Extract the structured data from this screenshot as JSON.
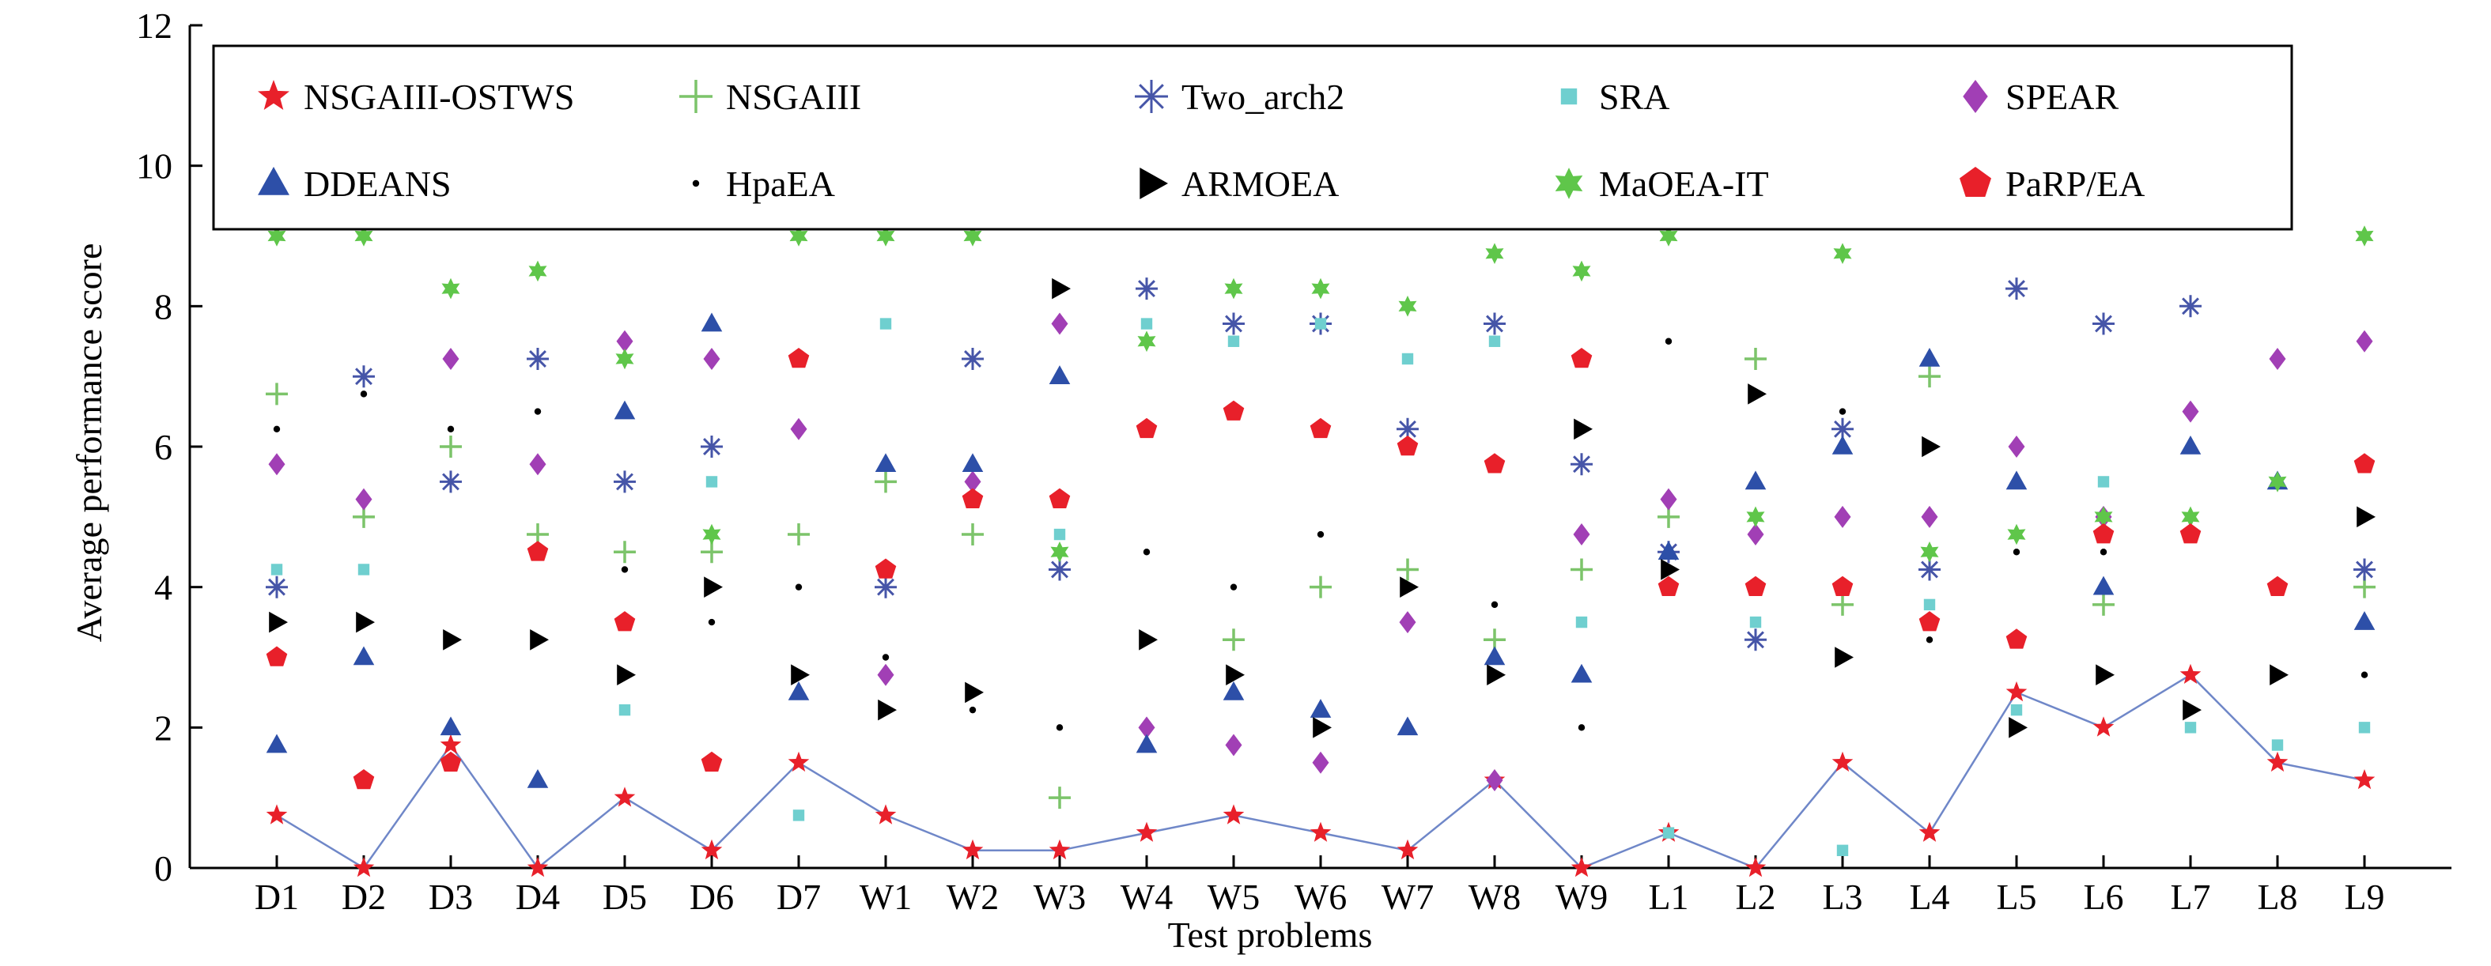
{
  "chart_data": {
    "type": "scatter",
    "title": "",
    "xlabel": "Test problems",
    "ylabel": "Average performance score",
    "ylim": [
      0,
      12
    ],
    "yticks": [
      0,
      2,
      4,
      6,
      8,
      10,
      12
    ],
    "grid": false,
    "legend_position": "top",
    "categories": [
      "D1",
      "D2",
      "D3",
      "D4",
      "D5",
      "D6",
      "D7",
      "W1",
      "W2",
      "W3",
      "W4",
      "W5",
      "W6",
      "W7",
      "W8",
      "W9",
      "L1",
      "L2",
      "L3",
      "L4",
      "L5",
      "L6",
      "L7",
      "L8",
      "L9"
    ],
    "series": [
      {
        "name": "NSGAIII-OSTWS",
        "marker": "star",
        "color": "#e8202a",
        "connected": true,
        "line_color": "#6f87c8",
        "values": [
          0.75,
          0,
          1.75,
          0,
          1,
          0.25,
          1.5,
          0.75,
          0.25,
          0.25,
          0.5,
          0.75,
          0.5,
          0.25,
          1.25,
          0,
          0.5,
          0,
          1.5,
          0.5,
          2.5,
          2,
          2.75,
          1.5,
          1.25
        ]
      },
      {
        "name": "NSGAIII",
        "marker": "plus",
        "color": "#7cc46a",
        "values": [
          6.75,
          5,
          6,
          4.75,
          4.5,
          4.5,
          4.75,
          5.5,
          4.75,
          1,
          null,
          3.25,
          4,
          4.25,
          3.25,
          4.25,
          5,
          7.25,
          3.75,
          7,
          null,
          3.75,
          null,
          null,
          4
        ]
      },
      {
        "name": "Two_arch2",
        "marker": "asterisk",
        "color": "#4655a8",
        "values": [
          4,
          7,
          5.5,
          7.25,
          5.5,
          6,
          null,
          4,
          7.25,
          4.25,
          8.25,
          7.75,
          7.75,
          6.25,
          7.75,
          5.75,
          4.5,
          3.25,
          6.25,
          4.25,
          8.25,
          7.75,
          8,
          null,
          4.25
        ]
      },
      {
        "name": "SRA",
        "marker": "square",
        "color": "#6fcfcf",
        "values": [
          4.25,
          4.25,
          null,
          null,
          2.25,
          5.5,
          0.75,
          7.75,
          null,
          4.75,
          7.75,
          7.5,
          7.75,
          7.25,
          7.5,
          3.5,
          0.5,
          3.5,
          0.25,
          3.75,
          2.25,
          5.5,
          2,
          1.75,
          2
        ]
      },
      {
        "name": "SPEAR",
        "marker": "diamond",
        "color": "#a13fb5",
        "values": [
          5.75,
          5.25,
          7.25,
          5.75,
          7.5,
          7.25,
          6.25,
          2.75,
          5.5,
          7.75,
          2,
          1.75,
          1.5,
          3.5,
          1.25,
          4.75,
          5.25,
          4.75,
          5,
          5,
          6,
          5,
          6.5,
          7.25,
          7.5
        ]
      },
      {
        "name": "DDEANS",
        "marker": "triangle-up",
        "color": "#2d4fa8",
        "values": [
          1.75,
          3,
          2,
          1.25,
          6.5,
          7.75,
          2.5,
          5.75,
          5.75,
          7,
          1.75,
          2.5,
          2.25,
          2,
          3,
          2.75,
          4.5,
          5.5,
          6,
          7.25,
          5.5,
          4,
          6,
          5.5,
          3.5
        ]
      },
      {
        "name": "HpaEA",
        "marker": "dot",
        "color": "#000000",
        "values": [
          6.25,
          6.75,
          6.25,
          6.5,
          4.25,
          3.5,
          4,
          3,
          2.25,
          2,
          4.5,
          4,
          4.75,
          null,
          3.75,
          2,
          7.5,
          null,
          6.5,
          3.25,
          4.5,
          4.5,
          null,
          null,
          2.75
        ]
      },
      {
        "name": "ARMOEA",
        "marker": "triangle-right",
        "color": "#000000",
        "values": [
          3.5,
          3.5,
          3.25,
          3.25,
          2.75,
          4,
          2.75,
          2.25,
          2.5,
          8.25,
          3.25,
          2.75,
          2,
          4,
          2.75,
          6.25,
          4.25,
          6.75,
          3,
          6,
          2,
          2.75,
          2.25,
          2.75,
          5
        ]
      },
      {
        "name": "MaOEA-IT",
        "marker": "star6",
        "color": "#5fc64a",
        "values": [
          9,
          9,
          8.25,
          8.5,
          7.25,
          4.75,
          9,
          9,
          9,
          4.5,
          7.5,
          8.25,
          8.25,
          8,
          8.75,
          8.5,
          9,
          5,
          8.75,
          4.5,
          4.75,
          5,
          5,
          5.5,
          9
        ]
      },
      {
        "name": "PaRP/EA",
        "marker": "pentagon",
        "color": "#e8202a",
        "values": [
          3,
          1.25,
          1.5,
          4.5,
          3.5,
          1.5,
          7.25,
          4.25,
          5.25,
          5.25,
          6.25,
          6.5,
          6.25,
          6,
          5.75,
          7.25,
          4,
          4,
          4,
          3.5,
          3.25,
          4.75,
          4.75,
          4,
          5.75
        ]
      }
    ]
  }
}
